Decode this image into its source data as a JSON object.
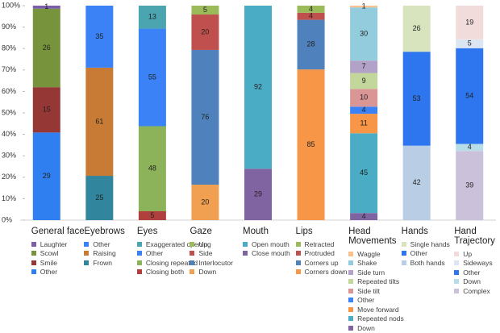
{
  "chart_data": {
    "type": "bar",
    "stacked": "percent",
    "ylim": [
      0,
      100
    ],
    "yticks": [
      {
        "value": 0,
        "label": "0%"
      },
      {
        "value": 10,
        "label": "10%"
      },
      {
        "value": 20,
        "label": "20%"
      },
      {
        "value": 30,
        "label": "30%"
      },
      {
        "value": 40,
        "label": "40%"
      },
      {
        "value": 50,
        "label": "50%"
      },
      {
        "value": 60,
        "label": "60%"
      },
      {
        "value": 70,
        "label": "70%"
      },
      {
        "value": 80,
        "label": "80%"
      },
      {
        "value": 90,
        "label": "90%"
      },
      {
        "value": 100,
        "label": "100%"
      }
    ],
    "groups": [
      {
        "name": "General face",
        "segments": [
          {
            "name": "Laughter",
            "color": "#7b5ea7",
            "value": 1
          },
          {
            "name": "Scowl",
            "color": "#77933c",
            "value": 26
          },
          {
            "name": "Smile",
            "color": "#953735",
            "value": 15
          },
          {
            "name": "Other",
            "color": "#2f7ff0",
            "value": 29
          }
        ]
      },
      {
        "name": "Eyebrows",
        "segments": [
          {
            "name": "Other",
            "color": "#3b82f6",
            "value": 35
          },
          {
            "name": "Raising",
            "color": "#c87b35",
            "value": 61
          },
          {
            "name": "Frown",
            "color": "#31859c",
            "value": 25
          }
        ]
      },
      {
        "name": "Eyes",
        "segments": [
          {
            "name": "Exaggerated opening",
            "color": "#4aa5b0",
            "value": 13
          },
          {
            "name": "Other",
            "color": "#3b82f6",
            "value": 55
          },
          {
            "name": "Closing repeated",
            "color": "#8db35a",
            "value": 48
          },
          {
            "name": "Closing both",
            "color": "#b0403d",
            "value": 5
          }
        ]
      },
      {
        "name": "Gaze",
        "segments": [
          {
            "name": "Up",
            "color": "#9bbb59",
            "value": 5
          },
          {
            "name": "Side",
            "color": "#c0504d",
            "value": 20
          },
          {
            "name": "Interlocutor",
            "color": "#4f81bd",
            "value": 76
          },
          {
            "name": "Down",
            "color": "#f0a050",
            "value": 20
          }
        ]
      },
      {
        "name": "Mouth",
        "segments": [
          {
            "name": "Open mouth",
            "color": "#4bacc6",
            "value": 92
          },
          {
            "name": "Close mouth",
            "color": "#8064a2",
            "value": 29
          }
        ]
      },
      {
        "name": "Lips",
        "segments": [
          {
            "name": "Retracted",
            "color": "#9bbb59",
            "value": 4
          },
          {
            "name": "Protruded",
            "color": "#c0504d",
            "value": 4
          },
          {
            "name": "Corners up",
            "color": "#4f81bd",
            "value": 28
          },
          {
            "name": "Corners down",
            "color": "#f79646",
            "value": 85
          }
        ]
      },
      {
        "name": "Head Movements",
        "segments": [
          {
            "name": "Waggle",
            "color": "#fac090",
            "value": 1
          },
          {
            "name": "Shake",
            "color": "#93cddd",
            "value": 30
          },
          {
            "name": "Side turn",
            "color": "#b3a2c7",
            "value": 7
          },
          {
            "name": "Repeated tilts",
            "color": "#c3d69b",
            "value": 9
          },
          {
            "name": "Side tilt",
            "color": "#d99694",
            "value": 10
          },
          {
            "name": "Other",
            "color": "#3b82f6",
            "value": 4
          },
          {
            "name": "Move forward",
            "color": "#f79646",
            "value": 11
          },
          {
            "name": "Repeated nods",
            "color": "#4bacc6",
            "value": 45
          },
          {
            "name": "Down",
            "color": "#8064a2",
            "value": 4
          }
        ]
      },
      {
        "name": "Hands",
        "segments": [
          {
            "name": "Single hands",
            "color": "#d7e4bd",
            "value": 26
          },
          {
            "name": "Other",
            "color": "#2e75f0",
            "value": 53
          },
          {
            "name": "Both hands",
            "color": "#b9cde5",
            "value": 42
          }
        ]
      },
      {
        "name": "Hand Trajectory",
        "segments": [
          {
            "name": "Up",
            "color": "#f2dcdb",
            "value": 19
          },
          {
            "name": "Sideways",
            "color": "#dce6f2",
            "value": 5
          },
          {
            "name": "Other",
            "color": "#2e75f0",
            "value": 54
          },
          {
            "name": "Down",
            "color": "#b7dee8",
            "value": 4
          },
          {
            "name": "Complex",
            "color": "#ccc1da",
            "value": 39
          }
        ]
      }
    ]
  }
}
